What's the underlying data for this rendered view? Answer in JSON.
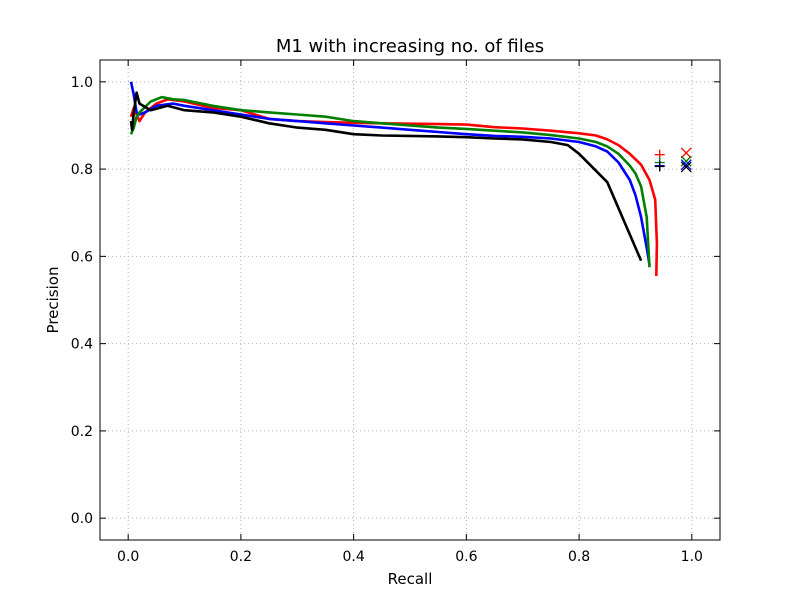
{
  "chart_data": {
    "type": "line",
    "title": "M1 with increasing no. of files",
    "xlabel": "Recall",
    "ylabel": "Precision",
    "xlim": [
      -0.05,
      1.05
    ],
    "ylim": [
      -0.05,
      1.05
    ],
    "xticks": [
      0.0,
      0.2,
      0.4,
      0.6,
      0.8,
      1.0
    ],
    "xtick_labels": [
      "0.0",
      "0.2",
      "0.4",
      "0.6",
      "0.8",
      "1.0"
    ],
    "yticks": [
      0.0,
      0.2,
      0.4,
      0.6,
      0.8,
      1.0
    ],
    "ytick_labels": [
      "0.0",
      "0.2",
      "0.4",
      "0.6",
      "0.8",
      "1.0"
    ],
    "grid": true,
    "series": [
      {
        "color": "#ff0000",
        "points": [
          [
            0.005,
            0.92
          ],
          [
            0.01,
            0.94
          ],
          [
            0.02,
            0.91
          ],
          [
            0.03,
            0.93
          ],
          [
            0.05,
            0.95
          ],
          [
            0.07,
            0.96
          ],
          [
            0.1,
            0.955
          ],
          [
            0.15,
            0.94
          ],
          [
            0.2,
            0.935
          ],
          [
            0.25,
            0.915
          ],
          [
            0.3,
            0.91
          ],
          [
            0.35,
            0.908
          ],
          [
            0.4,
            0.906
          ],
          [
            0.45,
            0.905
          ],
          [
            0.5,
            0.904
          ],
          [
            0.55,
            0.903
          ],
          [
            0.6,
            0.902
          ],
          [
            0.65,
            0.896
          ],
          [
            0.7,
            0.893
          ],
          [
            0.75,
            0.888
          ],
          [
            0.8,
            0.882
          ],
          [
            0.83,
            0.877
          ],
          [
            0.85,
            0.868
          ],
          [
            0.87,
            0.855
          ],
          [
            0.89,
            0.835
          ],
          [
            0.91,
            0.81
          ],
          [
            0.925,
            0.775
          ],
          [
            0.935,
            0.73
          ],
          [
            0.938,
            0.63
          ],
          [
            0.937,
            0.555
          ]
        ]
      },
      {
        "color": "#0000ff",
        "points": [
          [
            0.005,
            1.0
          ],
          [
            0.01,
            0.97
          ],
          [
            0.015,
            0.93
          ],
          [
            0.02,
            0.925
          ],
          [
            0.03,
            0.93
          ],
          [
            0.05,
            0.945
          ],
          [
            0.08,
            0.95
          ],
          [
            0.1,
            0.945
          ],
          [
            0.15,
            0.935
          ],
          [
            0.2,
            0.925
          ],
          [
            0.25,
            0.915
          ],
          [
            0.3,
            0.91
          ],
          [
            0.35,
            0.905
          ],
          [
            0.4,
            0.9
          ],
          [
            0.45,
            0.895
          ],
          [
            0.5,
            0.89
          ],
          [
            0.55,
            0.885
          ],
          [
            0.6,
            0.88
          ],
          [
            0.65,
            0.876
          ],
          [
            0.7,
            0.874
          ],
          [
            0.75,
            0.87
          ],
          [
            0.8,
            0.862
          ],
          [
            0.83,
            0.852
          ],
          [
            0.85,
            0.84
          ],
          [
            0.87,
            0.815
          ],
          [
            0.89,
            0.775
          ],
          [
            0.9,
            0.74
          ],
          [
            0.91,
            0.69
          ],
          [
            0.92,
            0.62
          ],
          [
            0.925,
            0.58
          ]
        ]
      },
      {
        "color": "#008000",
        "points": [
          [
            0.005,
            0.88
          ],
          [
            0.01,
            0.895
          ],
          [
            0.015,
            0.92
          ],
          [
            0.02,
            0.93
          ],
          [
            0.04,
            0.955
          ],
          [
            0.06,
            0.965
          ],
          [
            0.08,
            0.96
          ],
          [
            0.1,
            0.958
          ],
          [
            0.15,
            0.945
          ],
          [
            0.2,
            0.935
          ],
          [
            0.25,
            0.93
          ],
          [
            0.3,
            0.925
          ],
          [
            0.35,
            0.92
          ],
          [
            0.4,
            0.91
          ],
          [
            0.45,
            0.905
          ],
          [
            0.5,
            0.9
          ],
          [
            0.55,
            0.895
          ],
          [
            0.6,
            0.892
          ],
          [
            0.65,
            0.888
          ],
          [
            0.7,
            0.884
          ],
          [
            0.75,
            0.878
          ],
          [
            0.8,
            0.87
          ],
          [
            0.83,
            0.862
          ],
          [
            0.85,
            0.852
          ],
          [
            0.87,
            0.835
          ],
          [
            0.89,
            0.808
          ],
          [
            0.9,
            0.79
          ],
          [
            0.91,
            0.76
          ],
          [
            0.92,
            0.69
          ],
          [
            0.925,
            0.575
          ]
        ]
      },
      {
        "color": "#000000",
        "points": [
          [
            0.005,
            0.91
          ],
          [
            0.007,
            0.89
          ],
          [
            0.01,
            0.93
          ],
          [
            0.015,
            0.975
          ],
          [
            0.02,
            0.95
          ],
          [
            0.04,
            0.935
          ],
          [
            0.07,
            0.945
          ],
          [
            0.1,
            0.935
          ],
          [
            0.15,
            0.93
          ],
          [
            0.2,
            0.92
          ],
          [
            0.25,
            0.905
          ],
          [
            0.3,
            0.895
          ],
          [
            0.35,
            0.89
          ],
          [
            0.4,
            0.88
          ],
          [
            0.45,
            0.877
          ],
          [
            0.5,
            0.876
          ],
          [
            0.55,
            0.875
          ],
          [
            0.6,
            0.873
          ],
          [
            0.65,
            0.87
          ],
          [
            0.7,
            0.868
          ],
          [
            0.75,
            0.862
          ],
          [
            0.78,
            0.855
          ],
          [
            0.8,
            0.835
          ],
          [
            0.85,
            0.77
          ],
          [
            0.91,
            0.59
          ]
        ]
      }
    ],
    "markers": [
      {
        "symbol": "+",
        "color": "#ff0000",
        "x": 0.943,
        "y": 0.833
      },
      {
        "symbol": "+",
        "color": "#008000",
        "x": 0.943,
        "y": 0.815
      },
      {
        "symbol": "+",
        "color": "#0000ff",
        "x": 0.943,
        "y": 0.808
      },
      {
        "symbol": "+",
        "color": "#000000",
        "x": 0.943,
        "y": 0.806
      },
      {
        "symbol": "x",
        "color": "#ff0000",
        "x": 0.99,
        "y": 0.837
      },
      {
        "symbol": "x",
        "color": "#008000",
        "x": 0.99,
        "y": 0.818
      },
      {
        "symbol": "x",
        "color": "#0000ff",
        "x": 0.99,
        "y": 0.81
      },
      {
        "symbol": "x",
        "color": "#000000",
        "x": 0.99,
        "y": 0.805
      }
    ]
  }
}
